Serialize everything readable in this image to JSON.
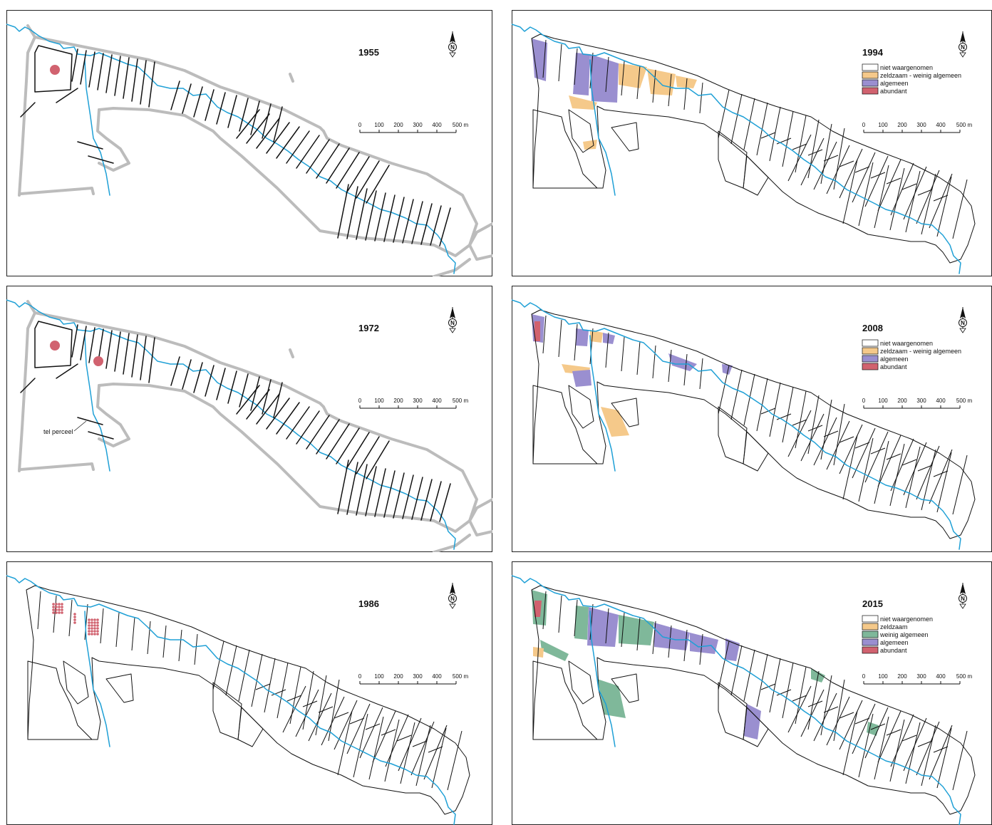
{
  "colors": {
    "niet_waargenomen": "#ffffff",
    "zeldzaam": "#f5c98a",
    "weinig_algemeen": "#7fb89a",
    "algemeen": "#9a8fd0",
    "abundant": "#d1626f",
    "river": "#1fa0d6",
    "road": "#bcbcbc"
  },
  "scale": {
    "ticks": [
      "0",
      "100",
      "200",
      "300",
      "400",
      "500 m"
    ]
  },
  "north_label": "N",
  "panels": [
    {
      "year": "1955",
      "style": "historic",
      "legend": []
    },
    {
      "year": "1994",
      "style": "parcels",
      "legend": [
        {
          "label": "niet waargenomen",
          "color": "#ffffff"
        },
        {
          "label": "zeldzaam - weinig algemeen",
          "color": "#f5c98a"
        },
        {
          "label": "algemeen",
          "color": "#9a8fd0"
        },
        {
          "label": "abundant",
          "color": "#d1626f"
        }
      ]
    },
    {
      "year": "1972",
      "style": "historic",
      "note": "tel perceel",
      "legend": []
    },
    {
      "year": "2008",
      "style": "parcels",
      "legend": [
        {
          "label": "niet waargenomen",
          "color": "#ffffff"
        },
        {
          "label": "zeldzaam - weinig algemeen",
          "color": "#f5c98a"
        },
        {
          "label": "algemeen",
          "color": "#9a8fd0"
        },
        {
          "label": "abundant",
          "color": "#d1626f"
        }
      ]
    },
    {
      "year": "1986",
      "style": "parcels",
      "legend": []
    },
    {
      "year": "2015",
      "style": "parcels",
      "legend": [
        {
          "label": "niet waargenomen",
          "color": "#ffffff"
        },
        {
          "label": "zeldzaam",
          "color": "#f5c98a"
        },
        {
          "label": "weinig algemeen",
          "color": "#7fb89a"
        },
        {
          "label": "algemeen",
          "color": "#9a8fd0"
        },
        {
          "label": "abundant",
          "color": "#d1626f"
        }
      ]
    }
  ]
}
